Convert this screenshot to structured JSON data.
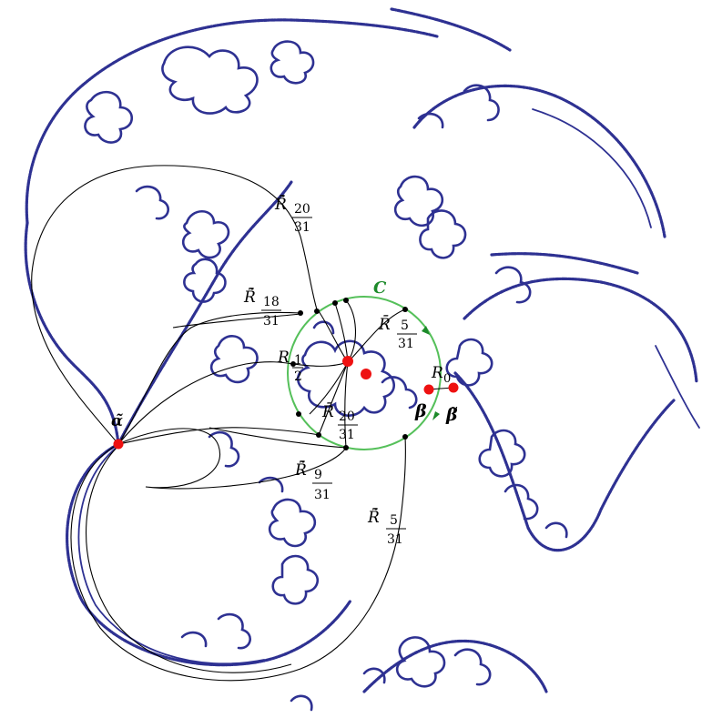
{
  "labels": {
    "alpha_tilde": "α̃",
    "circle_c": "C",
    "beta": "β",
    "beta_tilde": "β̃",
    "r0": {
      "symbol": "R",
      "sub": "0"
    },
    "r_half": {
      "symbol": "R",
      "num": "1",
      "den": "2"
    },
    "r_5_31": {
      "symbol": "R̄",
      "num": "5",
      "den": "31"
    },
    "r_20_31": {
      "symbol": "R̄",
      "num": "20",
      "den": "31"
    },
    "rt_20_31": {
      "symbol": "R̃̄",
      "num": "20",
      "den": "31"
    },
    "rt_18_31": {
      "symbol": "R̃̄",
      "num": "18",
      "den": "31"
    },
    "rt_9_31": {
      "symbol": "R̃̄",
      "num": "9",
      "den": "31"
    },
    "rt_5_31": {
      "symbol": "R̃̄",
      "num": "5",
      "den": "31"
    }
  },
  "colors": {
    "julia": "#2e3192",
    "circle": "#55c05a",
    "circle_label": "#1d8a2a",
    "marked_point": "#ee1111",
    "ray": "#000000"
  }
}
